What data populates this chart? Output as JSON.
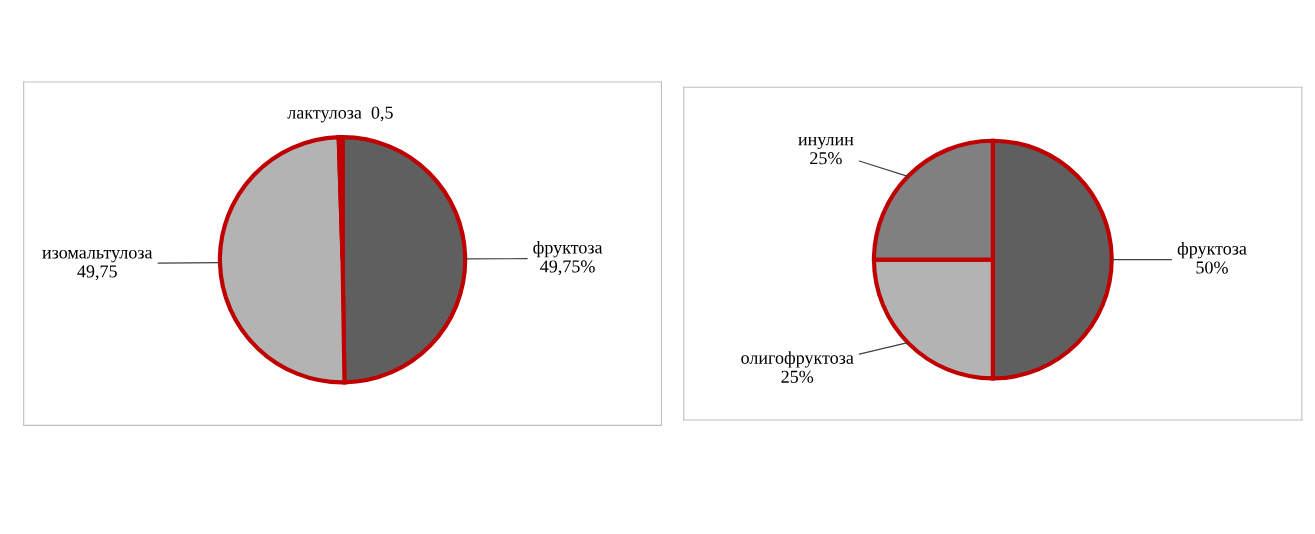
{
  "chart_data": [
    {
      "type": "pie",
      "categories": [
        "фруктоза",
        "изомальтулоза",
        "лактулоза"
      ],
      "values": [
        49.75,
        49.75,
        0.5
      ],
      "colors": [
        "#5f5f5f",
        "#b3b3b3",
        "#c00000"
      ],
      "value_labels": [
        "49,75%",
        "49,75",
        "0,5"
      ],
      "legend": false
    },
    {
      "type": "pie",
      "categories": [
        "фруктоза",
        "олигофруктоза",
        "инулин"
      ],
      "values": [
        50,
        25,
        25
      ],
      "colors": [
        "#5f5f5f",
        "#b3b3b3",
        "#808080"
      ],
      "value_labels": [
        "50%",
        "25%",
        "25%"
      ],
      "legend": false
    }
  ]
}
